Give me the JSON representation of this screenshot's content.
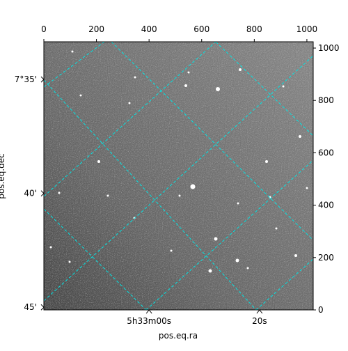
{
  "chart_data": {
    "type": "image",
    "xlabel": "pos.eq.ra",
    "ylabel": "pos.eq.dec",
    "xlim": [
      0,
      1024
    ],
    "ylim": [
      0,
      1024
    ],
    "xticks": [
      0,
      200,
      400,
      600,
      800,
      1000
    ],
    "yticks": [
      0,
      200,
      400,
      600,
      800,
      1000
    ],
    "ra_ticks": [
      {
        "value": 400,
        "label": "5h33m00s"
      },
      {
        "value": 820,
        "label": "20s"
      }
    ],
    "dec_ticks": [
      {
        "value": 880,
        "label": "7°35'"
      },
      {
        "value": 445,
        "label": "40'"
      },
      {
        "value": 10,
        "label": "45'"
      }
    ],
    "grid_color": "#00e5e5"
  }
}
